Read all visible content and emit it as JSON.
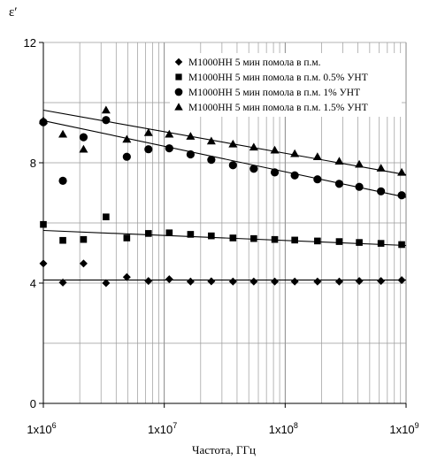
{
  "chart_data": {
    "type": "scatter",
    "ylabel": "ε′",
    "xlabel": "Частота, ГГц",
    "xscale": "log",
    "xlim": [
      1000000,
      1000000000
    ],
    "ylim": [
      0,
      12
    ],
    "yticks": [
      0,
      4,
      8,
      12
    ],
    "xticks": [
      1000000,
      10000000,
      100000000,
      1000000000
    ],
    "ytick_labels": [
      "0",
      "4",
      "8",
      "12"
    ],
    "xtick_labels": [
      "1x10",
      "1x10",
      "1x10",
      "1x10"
    ],
    "xtick_exponents": [
      "6",
      "7",
      "8",
      "9"
    ],
    "grid": true,
    "legend_position": "top-right",
    "series": [
      {
        "name": "M1000НН 5 мин помола в п.м.",
        "marker": "diamond",
        "x": [
          1000000,
          1450000,
          2150000,
          3300000,
          4900000,
          7400000,
          11000000,
          16500000,
          24500000,
          37000000,
          55000000,
          82000000,
          120000000,
          185000000,
          280000000,
          410000000,
          620000000,
          920000000
        ],
        "y": [
          4.65,
          4.02,
          4.65,
          4.0,
          4.2,
          4.07,
          4.13,
          4.05,
          4.06,
          4.05,
          4.05,
          4.05,
          4.05,
          4.05,
          4.05,
          4.07,
          4.07,
          4.1
        ],
        "fit": [
          4.1,
          4.1
        ]
      },
      {
        "name": "M1000НН 5 мин помола в п.м. 0.5% УНТ",
        "marker": "square",
        "x": [
          1000000,
          1450000,
          2150000,
          3300000,
          4900000,
          7400000,
          11000000,
          16500000,
          24500000,
          37000000,
          55000000,
          82000000,
          120000000,
          185000000,
          280000000,
          410000000,
          620000000,
          920000000
        ],
        "y": [
          5.95,
          5.42,
          5.45,
          6.2,
          5.5,
          5.65,
          5.67,
          5.62,
          5.57,
          5.5,
          5.48,
          5.45,
          5.43,
          5.4,
          5.38,
          5.35,
          5.32,
          5.28
        ],
        "fit": [
          5.75,
          5.25
        ]
      },
      {
        "name": "M1000НН 5 мин помола в п.м. 1% УНТ",
        "marker": "circle",
        "x": [
          1000000,
          1450000,
          2150000,
          3300000,
          4900000,
          7400000,
          11000000,
          16500000,
          24500000,
          37000000,
          55000000,
          82000000,
          120000000,
          185000000,
          280000000,
          410000000,
          620000000,
          920000000
        ],
        "y": [
          9.35,
          7.4,
          8.85,
          9.42,
          8.2,
          8.45,
          8.48,
          8.28,
          8.1,
          7.92,
          7.8,
          7.68,
          7.58,
          7.45,
          7.3,
          7.2,
          7.05,
          6.92
        ],
        "fit": [
          9.4,
          6.85
        ]
      },
      {
        "name": "M1000НН 5 мин помола в п.м. 1.5% УНТ",
        "marker": "triangle",
        "x": [
          1000000,
          1450000,
          2150000,
          3300000,
          4900000,
          7400000,
          11000000,
          16500000,
          24500000,
          37000000,
          55000000,
          82000000,
          120000000,
          185000000,
          280000000,
          410000000,
          620000000,
          920000000
        ],
        "y": [
          9.4,
          8.95,
          8.45,
          9.75,
          8.78,
          9.0,
          8.95,
          8.88,
          8.72,
          8.62,
          8.52,
          8.42,
          8.3,
          8.2,
          8.05,
          7.95,
          7.82,
          7.68
        ],
        "fit": [
          9.75,
          7.6
        ]
      }
    ]
  }
}
